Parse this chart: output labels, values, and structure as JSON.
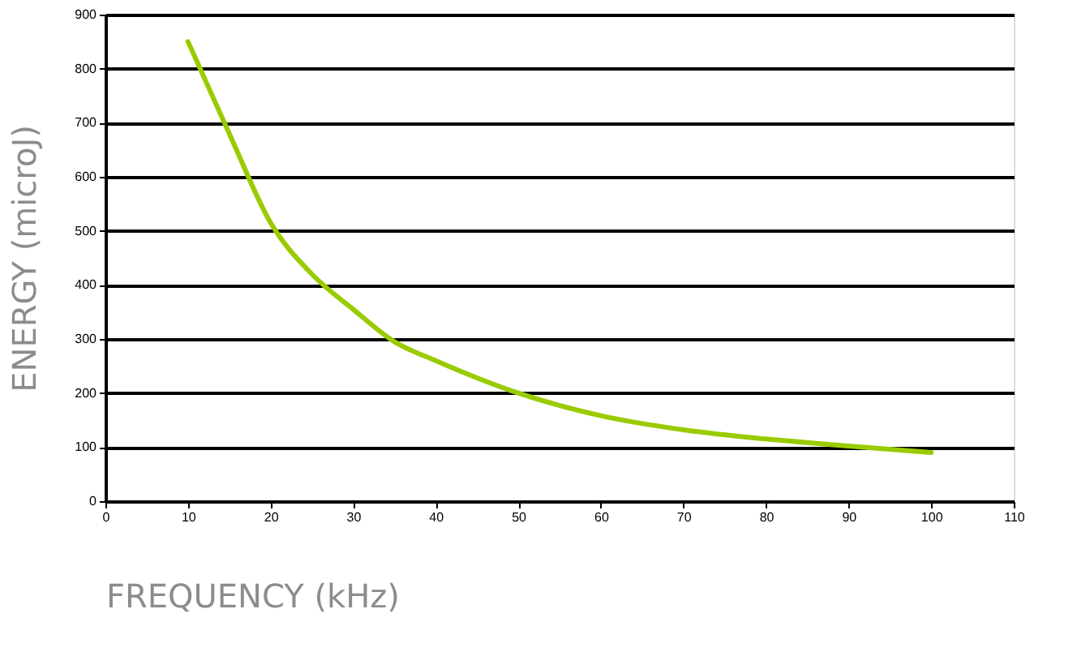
{
  "chart_data": {
    "type": "line",
    "xlabel": "FREQUENCY (kHz)",
    "ylabel": "ENERGY (microJ)",
    "x": [
      10,
      15,
      20,
      25,
      30,
      35,
      40,
      50,
      60,
      70,
      80,
      90,
      100
    ],
    "series": [
      {
        "color": "#99cc00",
        "values": [
          850,
          680,
          515,
          420,
          355,
          295,
          260,
          200,
          158,
          132,
          115,
          102,
          90
        ]
      }
    ],
    "xlim": [
      0,
      110
    ],
    "xticks": [
      0,
      10,
      20,
      30,
      40,
      50,
      60,
      70,
      80,
      90,
      100,
      110
    ],
    "ylim": [
      0,
      900
    ],
    "yticks": [
      0,
      100,
      200,
      300,
      400,
      500,
      600,
      700,
      800,
      900
    ],
    "grid": "y",
    "legend": false,
    "marker": "none",
    "line_style": "solid"
  }
}
